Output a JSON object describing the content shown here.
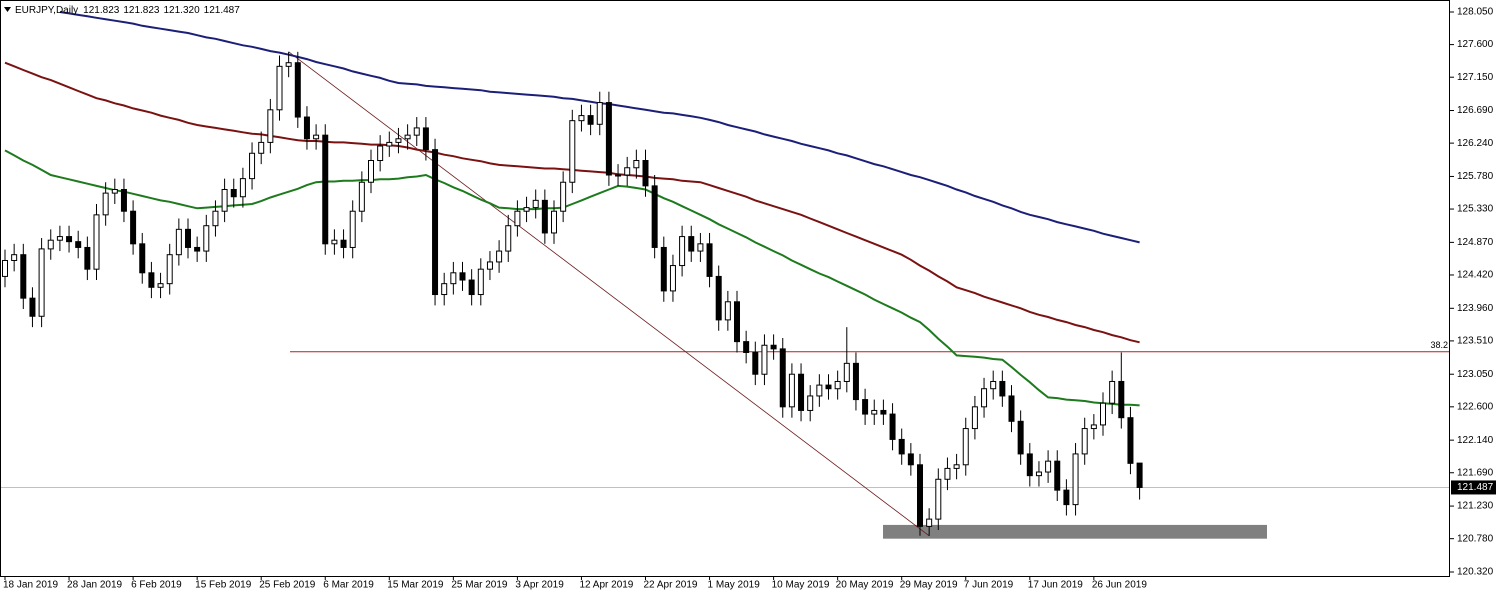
{
  "chart_data": {
    "type": "candlestick",
    "title": "EURJPY,Daily",
    "header_values": [
      "121.823",
      "121.823",
      "121.320",
      "121.487"
    ],
    "categories": [
      "18 Jan 2019",
      null,
      null,
      null,
      null,
      null,
      null,
      "28 Jan 2019",
      null,
      null,
      null,
      null,
      null,
      null,
      "6 Feb 2019",
      null,
      null,
      null,
      null,
      null,
      null,
      "15 Feb 2019",
      null,
      null,
      null,
      null,
      null,
      null,
      "25 Feb 2019",
      null,
      null,
      null,
      null,
      null,
      null,
      "6 Mar 2019",
      null,
      null,
      null,
      null,
      null,
      null,
      "15 Mar 2019",
      null,
      null,
      null,
      null,
      null,
      null,
      "25 Mar 2019",
      null,
      null,
      null,
      null,
      null,
      null,
      "3 Apr 2019",
      null,
      null,
      null,
      null,
      null,
      null,
      "12 Apr 2019",
      null,
      null,
      null,
      null,
      null,
      null,
      "22 Apr 2019",
      null,
      null,
      null,
      null,
      null,
      null,
      "1 May 2019",
      null,
      null,
      null,
      null,
      null,
      null,
      "10 May 2019",
      null,
      null,
      null,
      null,
      null,
      null,
      "20 May 2019",
      null,
      null,
      null,
      null,
      null,
      null,
      "29 May 2019",
      null,
      null,
      null,
      null,
      null,
      null,
      "7 Jun 2019",
      null,
      null,
      null,
      null,
      null,
      null,
      "17 Jun 2019",
      null,
      null,
      null,
      null,
      null,
      null,
      "26 Jun 2019",
      null,
      null,
      null,
      null,
      null
    ],
    "open": [
      124.4,
      124.62,
      124.7,
      124.1,
      123.85,
      124.78,
      124.9,
      124.95,
      124.88,
      124.8,
      124.5,
      125.25,
      125.55,
      125.6,
      125.3,
      124.85,
      124.45,
      124.25,
      124.3,
      124.7,
      125.05,
      124.8,
      124.75,
      125.1,
      125.3,
      125.6,
      125.5,
      125.75,
      126.1,
      126.25,
      126.7,
      127.3,
      127.35,
      126.6,
      126.3,
      126.35,
      124.85,
      124.9,
      124.8,
      125.3,
      125.7,
      126.0,
      126.2,
      126.25,
      126.3,
      126.35,
      126.45,
      126.15,
      124.15,
      124.3,
      124.45,
      124.35,
      124.15,
      124.5,
      124.6,
      124.75,
      125.1,
      125.3,
      125.35,
      125.45,
      125.0,
      125.3,
      125.7,
      126.55,
      126.62,
      126.5,
      126.8,
      125.8,
      125.8,
      125.9,
      126.0,
      125.65,
      124.8,
      124.2,
      124.55,
      124.95,
      124.75,
      124.85,
      124.4,
      123.8,
      124.05,
      123.5,
      123.35,
      123.05,
      123.45,
      123.4,
      122.6,
      123.05,
      122.55,
      122.75,
      122.9,
      122.85,
      122.95,
      123.2,
      122.7,
      122.5,
      122.55,
      122.5,
      122.15,
      121.95,
      121.8,
      120.95,
      121.05,
      121.6,
      121.75,
      121.8,
      122.3,
      122.6,
      122.85,
      122.95,
      122.75,
      122.4,
      121.95,
      121.65,
      121.7,
      121.85,
      121.45,
      121.25,
      121.95,
      122.3,
      122.35,
      122.65,
      122.95,
      122.45,
      121.823
    ],
    "high": [
      124.77,
      124.85,
      124.85,
      124.25,
      124.93,
      125.05,
      125.1,
      125.1,
      125.03,
      124.95,
      125.4,
      125.7,
      125.75,
      125.75,
      125.45,
      125.0,
      124.6,
      124.45,
      124.85,
      125.2,
      125.2,
      124.95,
      125.25,
      125.45,
      125.75,
      125.75,
      125.9,
      126.25,
      126.4,
      126.85,
      127.45,
      127.5,
      127.5,
      126.75,
      126.5,
      126.5,
      125.05,
      125.05,
      125.45,
      125.85,
      126.15,
      126.35,
      126.4,
      126.45,
      126.5,
      126.6,
      126.6,
      126.3,
      124.45,
      124.6,
      124.6,
      124.5,
      124.65,
      124.75,
      124.9,
      125.25,
      125.45,
      125.5,
      125.6,
      125.6,
      125.45,
      125.85,
      126.7,
      126.77,
      126.77,
      126.95,
      126.95,
      125.95,
      126.05,
      126.15,
      126.15,
      125.8,
      124.95,
      124.7,
      125.1,
      125.1,
      125.0,
      125.0,
      124.55,
      124.2,
      124.2,
      123.65,
      123.5,
      123.6,
      123.6,
      123.55,
      123.2,
      123.2,
      122.9,
      123.05,
      123.05,
      123.1,
      123.7,
      123.35,
      122.85,
      122.7,
      122.7,
      122.65,
      122.3,
      122.1,
      121.95,
      121.2,
      121.75,
      121.9,
      121.95,
      122.45,
      122.75,
      123.0,
      123.1,
      123.1,
      122.9,
      122.55,
      122.1,
      121.85,
      122.0,
      122.0,
      121.6,
      122.1,
      122.45,
      122.5,
      122.8,
      123.1,
      123.35,
      122.6,
      121.823
    ],
    "low": [
      124.25,
      124.47,
      123.95,
      123.7,
      123.7,
      124.63,
      124.75,
      124.73,
      124.65,
      124.35,
      124.35,
      125.1,
      125.4,
      125.15,
      124.7,
      124.3,
      124.1,
      124.1,
      124.15,
      124.55,
      124.65,
      124.6,
      124.6,
      124.95,
      125.15,
      125.35,
      125.35,
      125.6,
      125.95,
      126.1,
      126.55,
      127.15,
      126.45,
      126.15,
      126.15,
      124.7,
      124.7,
      124.65,
      124.65,
      125.15,
      125.55,
      125.85,
      126.05,
      126.1,
      126.15,
      126.2,
      126.0,
      124.0,
      124.0,
      124.15,
      124.2,
      124.0,
      124.0,
      124.35,
      124.45,
      124.6,
      124.95,
      125.15,
      125.2,
      124.85,
      124.85,
      125.15,
      125.55,
      126.4,
      126.35,
      126.35,
      125.65,
      125.65,
      125.65,
      125.75,
      125.5,
      124.65,
      124.05,
      124.05,
      124.4,
      124.6,
      124.6,
      124.25,
      123.65,
      123.65,
      123.35,
      123.2,
      122.9,
      122.9,
      123.25,
      122.45,
      122.45,
      122.4,
      122.4,
      122.6,
      122.7,
      122.7,
      122.8,
      122.55,
      122.35,
      122.35,
      122.35,
      122.0,
      121.8,
      121.65,
      120.82,
      120.82,
      120.9,
      121.45,
      121.6,
      121.65,
      122.15,
      122.45,
      122.7,
      122.6,
      122.25,
      121.8,
      121.5,
      121.5,
      121.55,
      121.3,
      121.1,
      121.1,
      121.8,
      122.15,
      122.2,
      122.5,
      122.3,
      121.67,
      121.32
    ],
    "close": [
      124.62,
      124.7,
      124.1,
      123.85,
      124.78,
      124.9,
      124.95,
      124.88,
      124.8,
      124.5,
      125.25,
      125.55,
      125.6,
      125.3,
      124.85,
      124.45,
      124.25,
      124.3,
      124.7,
      125.05,
      124.8,
      124.75,
      125.1,
      125.3,
      125.6,
      125.5,
      125.75,
      126.1,
      126.25,
      126.7,
      127.3,
      127.35,
      126.6,
      126.3,
      126.35,
      124.85,
      124.9,
      124.8,
      125.3,
      125.7,
      126.0,
      126.2,
      126.25,
      126.3,
      126.35,
      126.45,
      126.15,
      124.15,
      124.3,
      124.45,
      124.35,
      124.15,
      124.5,
      124.6,
      124.75,
      125.1,
      125.3,
      125.35,
      125.45,
      125.0,
      125.3,
      125.7,
      126.55,
      126.62,
      126.5,
      126.8,
      125.8,
      125.8,
      125.9,
      126.0,
      125.65,
      124.8,
      124.2,
      124.55,
      124.95,
      124.75,
      124.85,
      124.4,
      123.8,
      124.05,
      123.5,
      123.35,
      123.05,
      123.45,
      123.4,
      122.6,
      123.05,
      122.55,
      122.75,
      122.9,
      122.85,
      122.95,
      123.2,
      122.7,
      122.5,
      122.55,
      122.5,
      122.15,
      121.95,
      121.8,
      120.95,
      121.05,
      121.6,
      121.75,
      121.8,
      122.3,
      122.6,
      122.85,
      122.95,
      122.75,
      122.4,
      121.95,
      121.65,
      121.7,
      121.85,
      121.45,
      121.25,
      121.95,
      122.3,
      122.35,
      122.65,
      122.95,
      122.45,
      121.82,
      121.487
    ],
    "bull_color": "#ffffff",
    "bear_color": "#000000",
    "moving_averages": [
      {
        "color": "#1c1f78",
        "values": [
          null,
          null,
          null,
          null,
          null,
          null,
          128.05,
          128.03,
          128.01,
          127.99,
          127.97,
          127.95,
          127.93,
          127.91,
          127.89,
          127.86,
          127.84,
          127.82,
          127.8,
          127.78,
          127.76,
          127.73,
          127.7,
          127.68,
          127.65,
          127.62,
          127.59,
          127.57,
          127.54,
          127.51,
          127.49,
          127.46,
          127.43,
          127.4,
          127.36,
          127.33,
          127.3,
          127.27,
          127.23,
          127.2,
          127.17,
          127.14,
          127.1,
          127.07,
          127.06,
          127.05,
          127.03,
          127.02,
          127.01,
          127.0,
          126.99,
          126.98,
          126.97,
          126.95,
          126.94,
          126.93,
          126.92,
          126.91,
          126.9,
          126.89,
          126.88,
          126.86,
          126.85,
          126.83,
          126.81,
          126.79,
          126.78,
          126.76,
          126.74,
          126.72,
          126.7,
          126.68,
          126.66,
          126.65,
          126.63,
          126.61,
          126.59,
          126.56,
          126.53,
          126.49,
          126.46,
          126.43,
          126.4,
          126.36,
          126.33,
          126.3,
          126.27,
          126.23,
          126.2,
          126.17,
          126.14,
          126.1,
          126.07,
          126.03,
          125.99,
          125.95,
          125.92,
          125.88,
          125.84,
          125.8,
          125.77,
          125.73,
          125.69,
          125.65,
          125.6,
          125.56,
          125.51,
          125.47,
          125.43,
          125.38,
          125.34,
          125.29,
          125.25,
          125.22,
          125.19,
          125.15,
          125.12,
          125.09,
          125.06,
          125.03,
          124.99,
          124.96,
          124.93,
          124.9,
          124.87
        ]
      },
      {
        "color": "#7a1212",
        "values": [
          127.35,
          127.3,
          127.25,
          127.2,
          127.15,
          127.11,
          127.06,
          127.01,
          126.96,
          126.91,
          126.86,
          126.83,
          126.79,
          126.76,
          126.72,
          126.69,
          126.66,
          126.62,
          126.59,
          126.56,
          126.52,
          126.49,
          126.47,
          126.45,
          126.43,
          126.41,
          126.39,
          126.37,
          126.36,
          126.34,
          126.32,
          126.3,
          126.28,
          126.27,
          126.27,
          126.26,
          126.25,
          126.25,
          126.24,
          126.23,
          126.22,
          126.22,
          126.21,
          126.2,
          126.18,
          126.15,
          126.13,
          126.11,
          126.08,
          126.06,
          126.03,
          126.01,
          125.99,
          125.96,
          125.94,
          125.93,
          125.92,
          125.91,
          125.9,
          125.89,
          125.89,
          125.88,
          125.87,
          125.86,
          125.85,
          125.84,
          125.83,
          125.81,
          125.8,
          125.79,
          125.78,
          125.76,
          125.75,
          125.74,
          125.72,
          125.71,
          125.7,
          125.66,
          125.62,
          125.58,
          125.54,
          125.5,
          125.45,
          125.41,
          125.37,
          125.33,
          125.29,
          125.25,
          125.2,
          125.15,
          125.1,
          125.05,
          125.0,
          124.95,
          124.9,
          124.85,
          124.8,
          124.75,
          124.7,
          124.63,
          124.55,
          124.48,
          124.4,
          124.33,
          124.25,
          124.21,
          124.17,
          124.12,
          124.08,
          124.04,
          124.0,
          123.96,
          123.91,
          123.87,
          123.84,
          123.8,
          123.77,
          123.73,
          123.7,
          123.66,
          123.63,
          123.59,
          123.56,
          123.52,
          123.49
        ]
      },
      {
        "color": "#1d7a1d",
        "values": [
          126.14,
          126.07,
          126.0,
          125.94,
          125.87,
          125.8,
          125.77,
          125.74,
          125.71,
          125.68,
          125.65,
          125.62,
          125.59,
          125.57,
          125.54,
          125.51,
          125.48,
          125.45,
          125.43,
          125.4,
          125.37,
          125.34,
          125.35,
          125.36,
          125.37,
          125.38,
          125.39,
          125.4,
          125.44,
          125.49,
          125.53,
          125.57,
          125.61,
          125.66,
          125.7,
          125.71,
          125.71,
          125.72,
          125.72,
          125.73,
          125.73,
          125.74,
          125.74,
          125.75,
          125.77,
          125.78,
          125.8,
          125.74,
          125.69,
          125.63,
          125.58,
          125.52,
          125.46,
          125.41,
          125.35,
          125.34,
          125.33,
          125.33,
          125.33,
          125.34,
          125.34,
          125.35,
          125.4,
          125.45,
          125.5,
          125.55,
          125.6,
          125.65,
          125.64,
          125.62,
          125.6,
          125.54,
          125.48,
          125.43,
          125.37,
          125.31,
          125.25,
          125.19,
          125.12,
          125.06,
          125.0,
          124.94,
          124.87,
          124.81,
          124.75,
          124.69,
          124.62,
          124.56,
          124.5,
          124.44,
          124.39,
          124.33,
          124.27,
          124.21,
          124.15,
          124.08,
          124.02,
          123.96,
          123.9,
          123.83,
          123.77,
          123.66,
          123.54,
          123.43,
          123.31,
          123.3,
          123.29,
          123.28,
          123.26,
          123.25,
          123.15,
          123.04,
          122.94,
          122.83,
          122.73,
          122.72,
          122.7,
          122.69,
          122.68,
          122.66,
          122.65,
          122.64,
          122.63,
          122.63,
          122.62
        ]
      }
    ],
    "ylim": [
      120.32,
      128.05
    ],
    "yticks": [
      {
        "value": 128.05,
        "label": "128.050"
      },
      {
        "value": 127.6,
        "label": "127.600"
      },
      {
        "value": 127.15,
        "label": "127.150"
      },
      {
        "value": 126.69,
        "label": "126.690"
      },
      {
        "value": 126.24,
        "label": "126.240"
      },
      {
        "value": 125.78,
        "label": "125.780"
      },
      {
        "value": 125.33,
        "label": "125.330"
      },
      {
        "value": 124.87,
        "label": "124.870"
      },
      {
        "value": 124.42,
        "label": "124.420"
      },
      {
        "value": 123.96,
        "label": "123.960"
      },
      {
        "value": 123.51,
        "label": "123.510"
      },
      {
        "value": 123.05,
        "label": "123.050"
      },
      {
        "value": 122.6,
        "label": "122.600"
      },
      {
        "value": 122.14,
        "label": "122.140"
      },
      {
        "value": 121.69,
        "label": "121.690"
      },
      {
        "value": 121.23,
        "label": "121.230"
      },
      {
        "value": 120.78,
        "label": "120.780"
      },
      {
        "value": 120.32,
        "label": "120.320"
      }
    ],
    "current_price": {
      "value": 121.487,
      "label": "121.487"
    },
    "fib_level": {
      "value": 123.36,
      "label": "38.2",
      "color": "#b22222"
    },
    "zone": {
      "low": 120.78,
      "high": 120.97,
      "color": "#808080"
    }
  }
}
